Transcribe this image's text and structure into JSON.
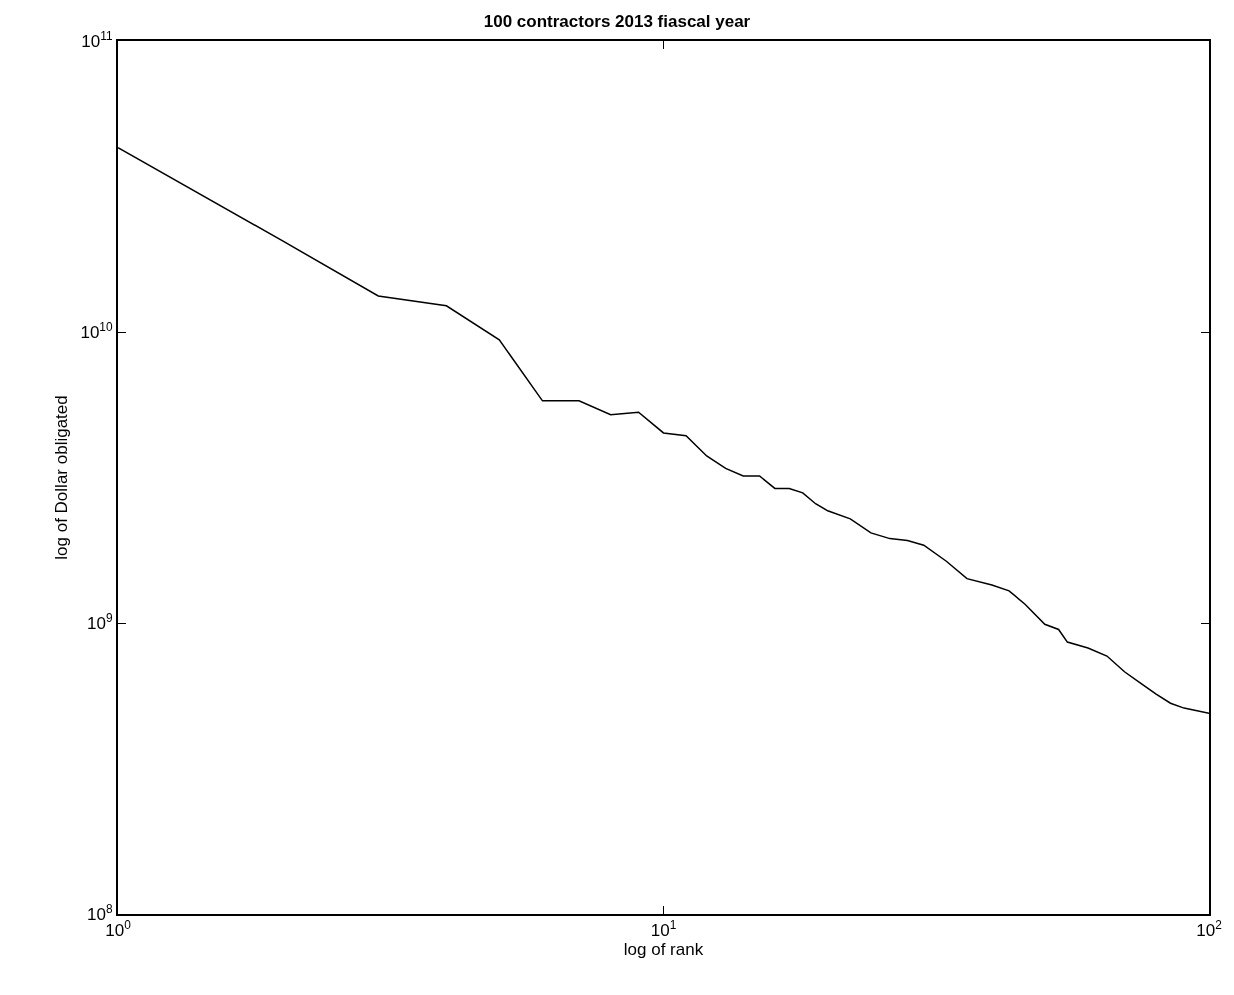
{
  "chart_data": {
    "type": "line",
    "title": "100 contractors 2013 fiascal year",
    "xlabel": "log of rank",
    "ylabel": "log of Dollar obligated",
    "log": "xy",
    "marker": "none",
    "line_style": "solid",
    "xlim": [
      1,
      100
    ],
    "xticks": [
      {
        "value": 1,
        "label": "10$^{0}$"
      },
      {
        "value": 10,
        "label": "10$^{1}$"
      },
      {
        "value": 100,
        "label": "10$^{2}$"
      }
    ],
    "ylim": [
      100000000,
      100000000000
    ],
    "yticks": [
      {
        "value": 100000000,
        "label": "10$^{8}$"
      },
      {
        "value": 1000000000,
        "label": "10$^{9}$"
      },
      {
        "value": 10000000000,
        "label": "10$^{10}$"
      },
      {
        "value": 100000000000,
        "label": "10$^{11}$"
      }
    ],
    "x": [
      1,
      2,
      3,
      4,
      5,
      6,
      7,
      8,
      9,
      10,
      11,
      12,
      13,
      14,
      15,
      16,
      17,
      18,
      19,
      20,
      22,
      24,
      26,
      28,
      30,
      33,
      36,
      40,
      43,
      46,
      50,
      53,
      55,
      60,
      65,
      70,
      75,
      80,
      85,
      90,
      100
    ],
    "series": [
      {
        "color": "#000000",
        "values": [
          43000000000.0,
          20600000000.0,
          13300000000.0,
          12300000000.0,
          9400000000.0,
          5800000000.0,
          5800000000.0,
          5200000000.0,
          5300000000.0,
          4500000000.0,
          4400000000.0,
          3750000000.0,
          3400000000.0,
          3200000000.0,
          3200000000.0,
          2900000000.0,
          2900000000.0,
          2800000000.0,
          2570000000.0,
          2430000000.0,
          2280000000.0,
          2040000000.0,
          1950000000.0,
          1920000000.0,
          1850000000.0,
          1630000000.0,
          1420000000.0,
          1350000000.0,
          1290000000.0,
          1160000000.0,
          990000000.0,
          950000000.0,
          860000000.0,
          820000000.0,
          770000000.0,
          680000000.0,
          620000000.0,
          570000000.0,
          530000000.0,
          510000000.0,
          490000000.0
        ]
      }
    ]
  }
}
